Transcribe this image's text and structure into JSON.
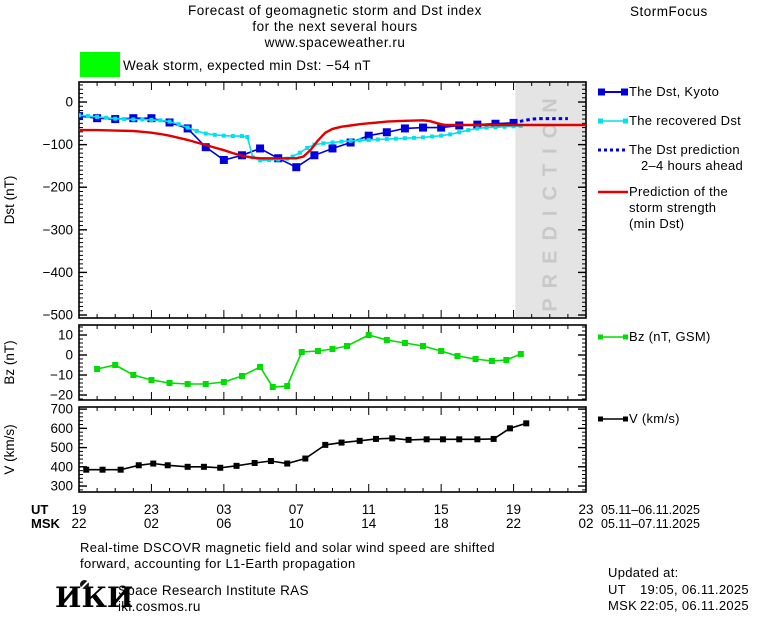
{
  "header": {
    "title_line1": "Forecast of geomagnetic storm and Dst index",
    "title_line2": "for the next several hours",
    "title_line3": "www.spaceweather.ru",
    "brand": "StormFocus"
  },
  "status": {
    "label": "Weak storm, expected min Dst: −54 nT",
    "swatch_color": "#00ff00"
  },
  "legend": {
    "dst_items": [
      {
        "lines": [
          "The Dst, Kyoto"
        ]
      },
      {
        "lines": [
          "The recovered Dst"
        ]
      },
      {
        "lines": [
          "The Dst prediction",
          "2–4 hours ahead"
        ]
      },
      {
        "lines": [
          "Prediction of the",
          "storm strength",
          "(min Dst)"
        ]
      }
    ],
    "bz_label": "Bz (nT, GSM)",
    "v_label": "V (km/s)"
  },
  "xaxis": {
    "ut_label": "UT",
    "msk_label": "MSK",
    "ut_ticks": [
      "19",
      "23",
      "03",
      "07",
      "11",
      "15",
      "19",
      "23"
    ],
    "msk_ticks": [
      "22",
      "02",
      "06",
      "10",
      "14",
      "18",
      "22",
      "02"
    ],
    "ut_dates": "05.11–06.11.2025",
    "msk_dates": "05.11–07.11.2025"
  },
  "footer": {
    "note_line1": "Real-time DSCOVR magnetic field and solar wind speed are shifted",
    "note_line2": "forward, accounting for L1-Earth propagation",
    "logo_text": "ИКИ",
    "institute_line1": "Space Research Institute RAS",
    "institute_line2": "iki.cosmos.ru",
    "updated_title": "Updated at:",
    "updated_rows": [
      {
        "label": "UT",
        "value": "19:05, 06.11.2025"
      },
      {
        "label": "MSK",
        "value": "22:05, 06.11.2025"
      }
    ]
  },
  "colors": {
    "kyoto_blue": "#0000dd",
    "recovered_cyan": "#00e0ee",
    "prediction_red": "#e00000",
    "bz_green": "#00dd00",
    "v_black": "#000000",
    "band_gray": "#e4e4e4",
    "band_text_gray": "#c8c8c8",
    "storm_green": "#00ff00"
  },
  "chart_data": [
    {
      "id": "dst",
      "type": "line",
      "ylabel": "Dst (nT)",
      "ylim": [
        -507,
        47
      ],
      "yticks": [
        0,
        -100,
        -200,
        -300,
        -400,
        -500
      ],
      "xlim": [
        0,
        28
      ],
      "x_unit": "hours since 19:00 UT 05.11.2025",
      "prediction_band": {
        "from_hour": 24.1,
        "to_hour": 28,
        "label": "PREDICTION"
      },
      "series": [
        {
          "name": "The Dst, Kyoto",
          "color": "#0000dd",
          "marker_size": 8,
          "line_width": 1.6,
          "points": [
            [
              0,
              -33
            ],
            [
              1,
              -38
            ],
            [
              2,
              -40
            ],
            [
              3,
              -38
            ],
            [
              4,
              -38
            ],
            [
              5,
              -48
            ],
            [
              6,
              -62
            ],
            [
              7,
              -106
            ],
            [
              8,
              -136
            ],
            [
              9,
              -125
            ],
            [
              10,
              -109
            ],
            [
              11,
              -132
            ],
            [
              12,
              -153
            ],
            [
              13,
              -125
            ],
            [
              14,
              -109
            ],
            [
              15,
              -95
            ],
            [
              16,
              -79
            ],
            [
              17,
              -71
            ],
            [
              18,
              -62
            ],
            [
              19,
              -60
            ],
            [
              20,
              -60
            ],
            [
              21,
              -55
            ],
            [
              22,
              -53
            ],
            [
              23,
              -51
            ],
            [
              24,
              -49
            ]
          ]
        },
        {
          "name": "The recovered Dst",
          "color": "#00e0ee",
          "marker_size": 4,
          "line_width": 1.6,
          "points": [
            [
              0,
              -31
            ],
            [
              0.5,
              -33
            ],
            [
              1,
              -35
            ],
            [
              1.5,
              -37
            ],
            [
              2,
              -39
            ],
            [
              2.5,
              -40
            ],
            [
              3,
              -41
            ],
            [
              3.5,
              -41
            ],
            [
              4,
              -42
            ],
            [
              4.5,
              -43
            ],
            [
              5,
              -46
            ],
            [
              5.5,
              -52
            ],
            [
              6,
              -60
            ],
            [
              6.5,
              -68
            ],
            [
              7,
              -74
            ],
            [
              7.5,
              -77
            ],
            [
              8,
              -79
            ],
            [
              8.5,
              -80
            ],
            [
              9,
              -80
            ],
            [
              9.3,
              -82
            ],
            [
              9.6,
              -130
            ],
            [
              10,
              -137
            ],
            [
              10.5,
              -136
            ],
            [
              11,
              -135
            ],
            [
              11.5,
              -133
            ],
            [
              11.8,
              -128
            ],
            [
              12.2,
              -119
            ],
            [
              12.6,
              -108
            ],
            [
              13,
              -100
            ],
            [
              13.5,
              -97
            ],
            [
              14,
              -95
            ],
            [
              14.5,
              -93
            ],
            [
              15,
              -91
            ],
            [
              15.5,
              -90
            ],
            [
              16,
              -89
            ],
            [
              16.5,
              -88
            ],
            [
              17,
              -87
            ],
            [
              17.5,
              -86
            ],
            [
              18,
              -85
            ],
            [
              18.5,
              -84
            ],
            [
              19,
              -83
            ],
            [
              19.5,
              -81
            ],
            [
              20,
              -79
            ],
            [
              20.5,
              -76
            ],
            [
              21,
              -71
            ],
            [
              21.5,
              -66
            ],
            [
              22,
              -62
            ],
            [
              22.5,
              -60
            ],
            [
              23,
              -59
            ],
            [
              23.5,
              -58
            ],
            [
              24,
              -57
            ],
            [
              24.4,
              -56
            ]
          ]
        },
        {
          "name": "The Dst prediction 2–4 hours ahead",
          "color": "#0000dd",
          "style": "dotted",
          "line_width": 3,
          "points": [
            [
              24,
              -49
            ],
            [
              24.5,
              -44
            ],
            [
              25,
              -40
            ],
            [
              25.5,
              -39
            ],
            [
              26,
              -39
            ],
            [
              26.5,
              -39
            ],
            [
              27,
              -39
            ]
          ]
        },
        {
          "name": "Prediction of the storm strength (min Dst)",
          "color": "#e00000",
          "line_width": 2.4,
          "points": [
            [
              0,
              -66
            ],
            [
              1,
              -66
            ],
            [
              2,
              -67
            ],
            [
              3,
              -68
            ],
            [
              3.5,
              -70
            ],
            [
              4,
              -72
            ],
            [
              4.5,
              -75
            ],
            [
              5,
              -79
            ],
            [
              5.5,
              -84
            ],
            [
              6,
              -89
            ],
            [
              6.5,
              -95
            ],
            [
              7,
              -101
            ],
            [
              7.5,
              -107
            ],
            [
              8,
              -113
            ],
            [
              8.5,
              -120
            ],
            [
              9,
              -126
            ],
            [
              9.5,
              -130
            ],
            [
              10,
              -132
            ],
            [
              11,
              -132
            ],
            [
              12,
              -132
            ],
            [
              12.4,
              -128
            ],
            [
              12.8,
              -112
            ],
            [
              13.2,
              -90
            ],
            [
              13.6,
              -72
            ],
            [
              14,
              -63
            ],
            [
              14.5,
              -58
            ],
            [
              15,
              -55
            ],
            [
              15.5,
              -52
            ],
            [
              16,
              -50
            ],
            [
              16.5,
              -48
            ],
            [
              17,
              -46
            ],
            [
              17.5,
              -45
            ],
            [
              18,
              -44
            ],
            [
              19,
              -43
            ],
            [
              19.4,
              -45
            ],
            [
              19.8,
              -50
            ],
            [
              20.2,
              -54
            ],
            [
              21,
              -54
            ],
            [
              22,
              -54
            ],
            [
              23,
              -54
            ],
            [
              24,
              -54
            ],
            [
              25,
              -54
            ],
            [
              26,
              -54
            ],
            [
              27,
              -54
            ],
            [
              28,
              -54
            ]
          ]
        }
      ]
    },
    {
      "id": "bz",
      "type": "line",
      "ylabel": "Bz (nT)",
      "ylim": [
        -22.5,
        15
      ],
      "yticks": [
        10,
        0,
        -10,
        -20
      ],
      "xlim": [
        0,
        28
      ],
      "series": [
        {
          "name": "Bz (nT, GSM)",
          "color": "#00dd00",
          "marker_size": 6,
          "line_width": 1.6,
          "points": [
            [
              1,
              -7
            ],
            [
              2,
              -5
            ],
            [
              3,
              -10
            ],
            [
              4,
              -12.5
            ],
            [
              5,
              -14
            ],
            [
              6,
              -14.5
            ],
            [
              7,
              -14.5
            ],
            [
              8,
              -13.5
            ],
            [
              9,
              -10.5
            ],
            [
              10,
              -6
            ],
            [
              10.7,
              -16
            ],
            [
              11.5,
              -15.5
            ],
            [
              12.3,
              1.5
            ],
            [
              13.2,
              2
            ],
            [
              14,
              3
            ],
            [
              14.8,
              4.5
            ],
            [
              16,
              10
            ],
            [
              17,
              7.5
            ],
            [
              18,
              6
            ],
            [
              19,
              4.5
            ],
            [
              20,
              2
            ],
            [
              20.9,
              -0.5
            ],
            [
              21.9,
              -2
            ],
            [
              22.8,
              -3
            ],
            [
              23.6,
              -2.5
            ],
            [
              24.4,
              0.5
            ]
          ]
        }
      ]
    },
    {
      "id": "v",
      "type": "line",
      "ylabel": "V (km/s)",
      "ylim": [
        269,
        711
      ],
      "yticks": [
        700,
        600,
        500,
        400,
        300
      ],
      "xlim": [
        0,
        28
      ],
      "series": [
        {
          "name": "V (km/s)",
          "color": "#000000",
          "marker_size": 6,
          "line_width": 1.6,
          "points": [
            [
              0.4,
              385
            ],
            [
              1.3,
              385
            ],
            [
              2.3,
              385
            ],
            [
              3.3,
              408
            ],
            [
              4.1,
              417
            ],
            [
              4.9,
              408
            ],
            [
              6,
              400
            ],
            [
              6.9,
              400
            ],
            [
              7.8,
              395
            ],
            [
              8.7,
              405
            ],
            [
              9.7,
              420
            ],
            [
              10.6,
              430
            ],
            [
              11.5,
              417
            ],
            [
              12.5,
              443
            ],
            [
              13.6,
              514
            ],
            [
              14.5,
              526
            ],
            [
              15.5,
              535
            ],
            [
              16.4,
              545
            ],
            [
              17.3,
              548
            ],
            [
              18.2,
              540
            ],
            [
              19.2,
              543
            ],
            [
              20.1,
              543
            ],
            [
              21,
              543
            ],
            [
              22,
              543
            ],
            [
              22.9,
              545
            ],
            [
              23.8,
              600
            ],
            [
              24.7,
              626
            ]
          ]
        }
      ]
    }
  ]
}
